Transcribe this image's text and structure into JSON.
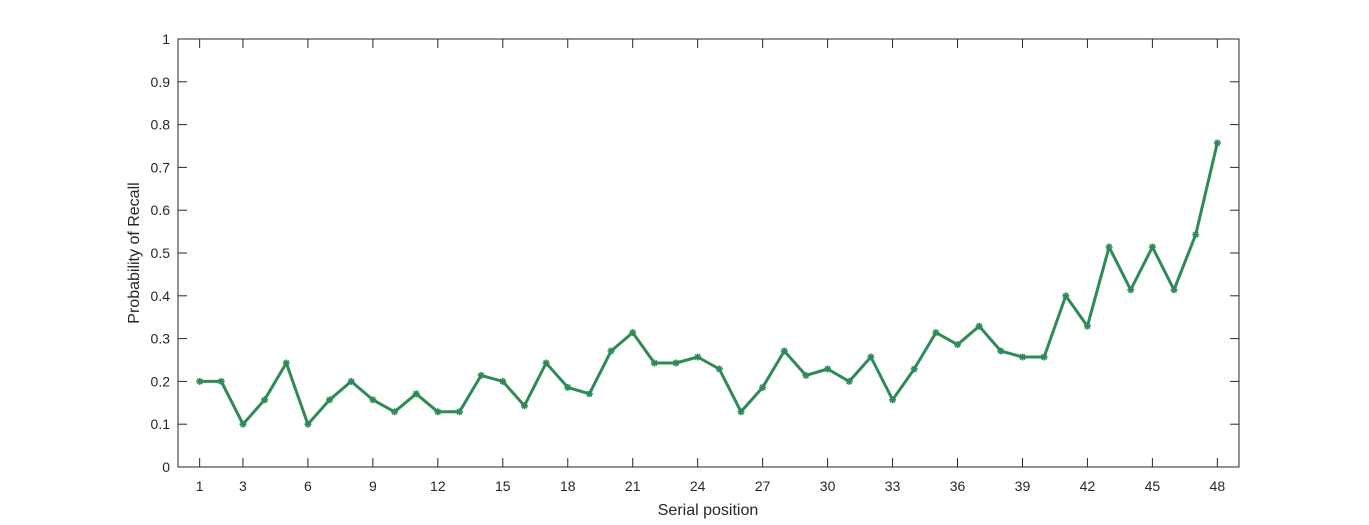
{
  "chart_data": {
    "type": "line",
    "title": "",
    "xlabel": "Serial position",
    "ylabel": "Probability of Recall",
    "xlim": [
      0,
      49
    ],
    "ylim": [
      0,
      1
    ],
    "xticks": [
      1,
      3,
      6,
      9,
      12,
      15,
      18,
      21,
      24,
      27,
      30,
      33,
      36,
      39,
      42,
      45,
      48
    ],
    "yticks": [
      0,
      0.1,
      0.2,
      0.3,
      0.4,
      0.5,
      0.6,
      0.7,
      0.8,
      0.9,
      1
    ],
    "ytick_labels": [
      "0",
      "0.1",
      "0.2",
      "0.3",
      "0.4",
      "0.5",
      "0.6",
      "0.7",
      "0.8",
      "0.9",
      "1"
    ],
    "grid": false,
    "line_color": "#2e8b57",
    "marker": "asterisk",
    "series": [
      {
        "x": [
          1,
          2,
          3,
          4,
          5,
          6,
          7,
          8,
          9,
          10,
          11,
          12,
          13,
          14,
          15,
          16,
          17,
          18,
          19,
          20,
          21,
          22,
          23,
          24,
          25,
          26,
          27,
          28,
          29,
          30,
          31,
          32,
          33,
          34,
          35,
          36,
          37,
          38,
          39,
          40,
          41,
          42,
          43,
          44,
          45,
          46,
          47,
          48
        ],
        "values": [
          0.2,
          0.2,
          0.1,
          0.157,
          0.243,
          0.1,
          0.157,
          0.2,
          0.157,
          0.129,
          0.171,
          0.129,
          0.129,
          0.214,
          0.2,
          0.143,
          0.243,
          0.186,
          0.171,
          0.271,
          0.314,
          0.243,
          0.243,
          0.257,
          0.229,
          0.129,
          0.186,
          0.271,
          0.214,
          0.229,
          0.2,
          0.257,
          0.157,
          0.229,
          0.314,
          0.286,
          0.329,
          0.271,
          0.257,
          0.257,
          0.4,
          0.329,
          0.514,
          0.414,
          0.514,
          0.414,
          0.543,
          0.757
        ]
      }
    ]
  }
}
